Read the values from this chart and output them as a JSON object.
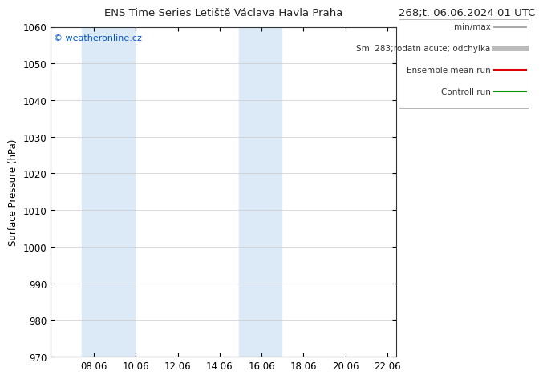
{
  "title_left": "ENS Time Series Letiště Václava Havla Praha",
  "title_right": "268;t. 06.06.2024 01 UTC",
  "ylabel": "Surface Pressure (hPa)",
  "ylim": [
    970,
    1060
  ],
  "yticks": [
    970,
    980,
    990,
    1000,
    1010,
    1020,
    1030,
    1040,
    1050,
    1060
  ],
  "xlim_start": 6.0,
  "xlim_end": 22.5,
  "xtick_positions": [
    8.06,
    10.06,
    12.06,
    14.06,
    16.06,
    18.06,
    20.06,
    22.06
  ],
  "xtick_labels": [
    "08.06",
    "10.06",
    "12.06",
    "14.06",
    "16.06",
    "18.06",
    "20.06",
    "22.06"
  ],
  "shade_bands": [
    {
      "x_start": 7.5,
      "x_end": 10.0
    },
    {
      "x_start": 15.0,
      "x_end": 17.0
    }
  ],
  "shade_color": "#dce9f7",
  "watermark_text": "© weatheronline.cz",
  "watermark_color": "#0055cc",
  "legend_items": [
    {
      "label": "min/max",
      "color": "#999999",
      "lw": 1.2,
      "style": "-"
    },
    {
      "label": "Sm  283;rodatn acute; odchylka",
      "color": "#bbbbbb",
      "lw": 5,
      "style": "-"
    },
    {
      "label": "Ensemble mean run",
      "color": "#dd0000",
      "lw": 1.5,
      "style": "-"
    },
    {
      "label": "Controll run",
      "color": "#009900",
      "lw": 1.5,
      "style": "-"
    }
  ],
  "bg_color": "#ffffff",
  "grid_color": "#cccccc",
  "title_fontsize": 9.5,
  "tick_fontsize": 8.5,
  "ylabel_fontsize": 8.5,
  "legend_fontsize": 7.5,
  "watermark_fontsize": 8
}
